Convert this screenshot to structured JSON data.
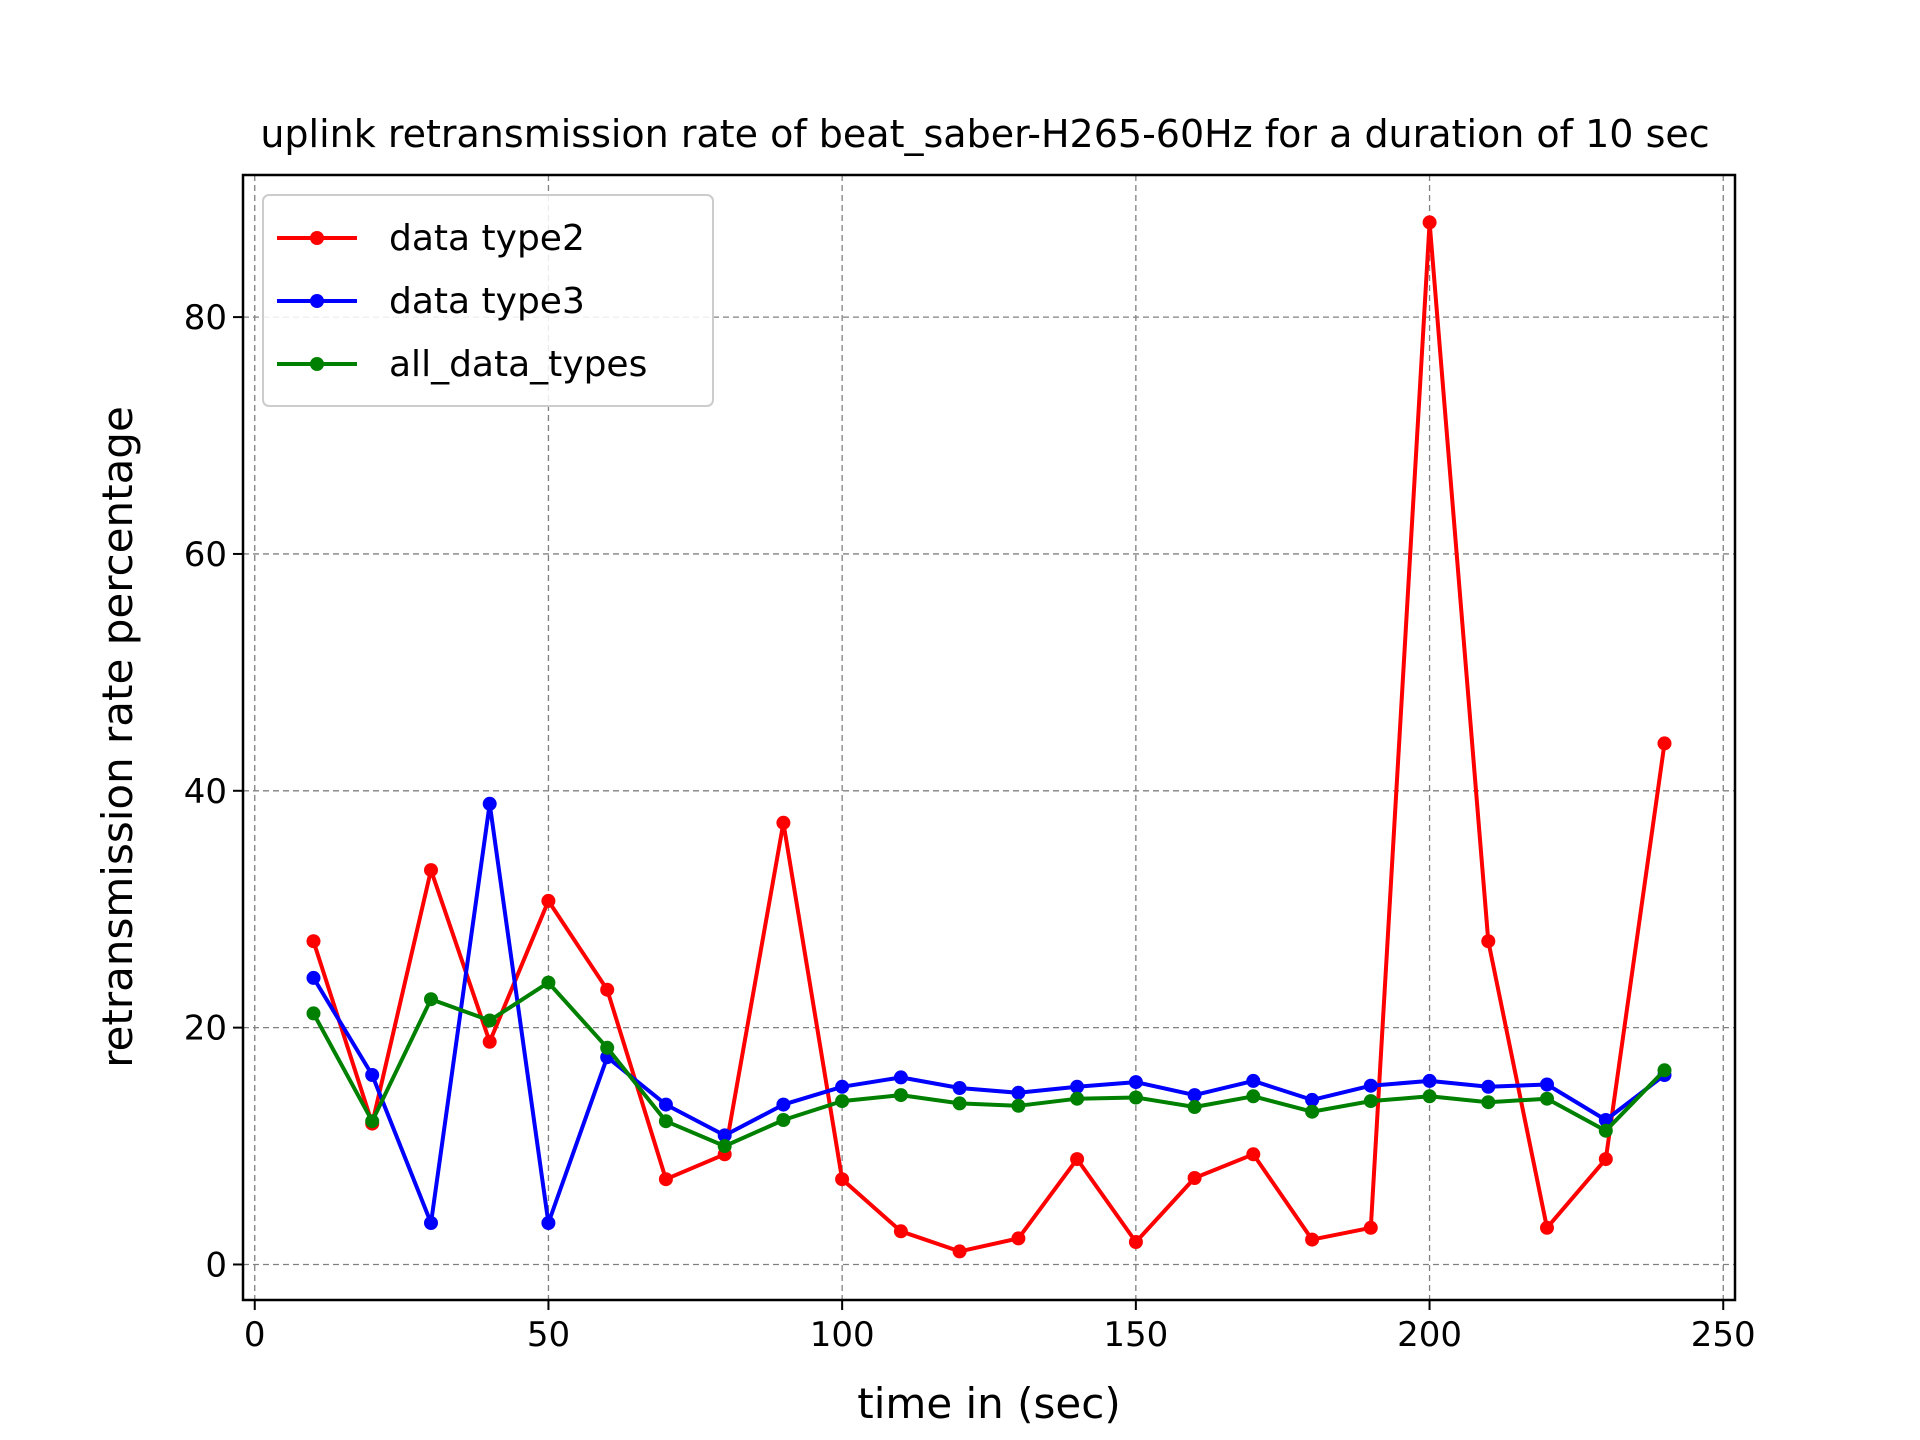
{
  "chart_data": {
    "type": "line",
    "title": "uplink retransmission rate of beat_saber-H265-60Hz for a duration of 10 sec",
    "xlabel": "time in (sec)",
    "ylabel": "retransmission rate percentage",
    "xlim": [
      -2,
      252
    ],
    "ylim": [
      -3,
      92
    ],
    "xticks": [
      0,
      50,
      100,
      150,
      200,
      250
    ],
    "yticks": [
      0,
      20,
      40,
      60,
      80
    ],
    "grid": true,
    "legend_position": "top-left",
    "x": [
      10,
      20,
      30,
      40,
      50,
      60,
      70,
      80,
      90,
      100,
      110,
      120,
      130,
      140,
      150,
      160,
      170,
      180,
      190,
      200,
      210,
      220,
      230,
      240
    ],
    "series": [
      {
        "name": "data type2",
        "color": "#ff0000",
        "values": [
          27.3,
          11.9,
          33.3,
          18.8,
          30.7,
          23.2,
          7.2,
          9.3,
          37.3,
          7.2,
          2.8,
          1.1,
          2.2,
          8.9,
          1.9,
          7.3,
          9.3,
          2.1,
          3.1,
          88.0,
          27.3,
          3.1,
          8.9,
          44.0
        ]
      },
      {
        "name": "data type3",
        "color": "#0000ff",
        "values": [
          24.2,
          16.0,
          3.5,
          38.9,
          3.5,
          17.5,
          13.5,
          10.9,
          13.5,
          15.0,
          15.8,
          14.9,
          14.5,
          15.0,
          15.4,
          14.3,
          15.5,
          13.9,
          15.1,
          15.5,
          15.0,
          15.2,
          12.2,
          16.0
        ]
      },
      {
        "name": "all_data_types",
        "color": "#008000",
        "values": [
          21.2,
          12.1,
          22.4,
          20.6,
          23.8,
          18.3,
          12.1,
          10.0,
          12.2,
          13.8,
          14.3,
          13.6,
          13.4,
          14.0,
          14.1,
          13.3,
          14.2,
          12.9,
          13.8,
          14.2,
          13.7,
          14.0,
          11.3,
          16.4
        ]
      }
    ]
  }
}
